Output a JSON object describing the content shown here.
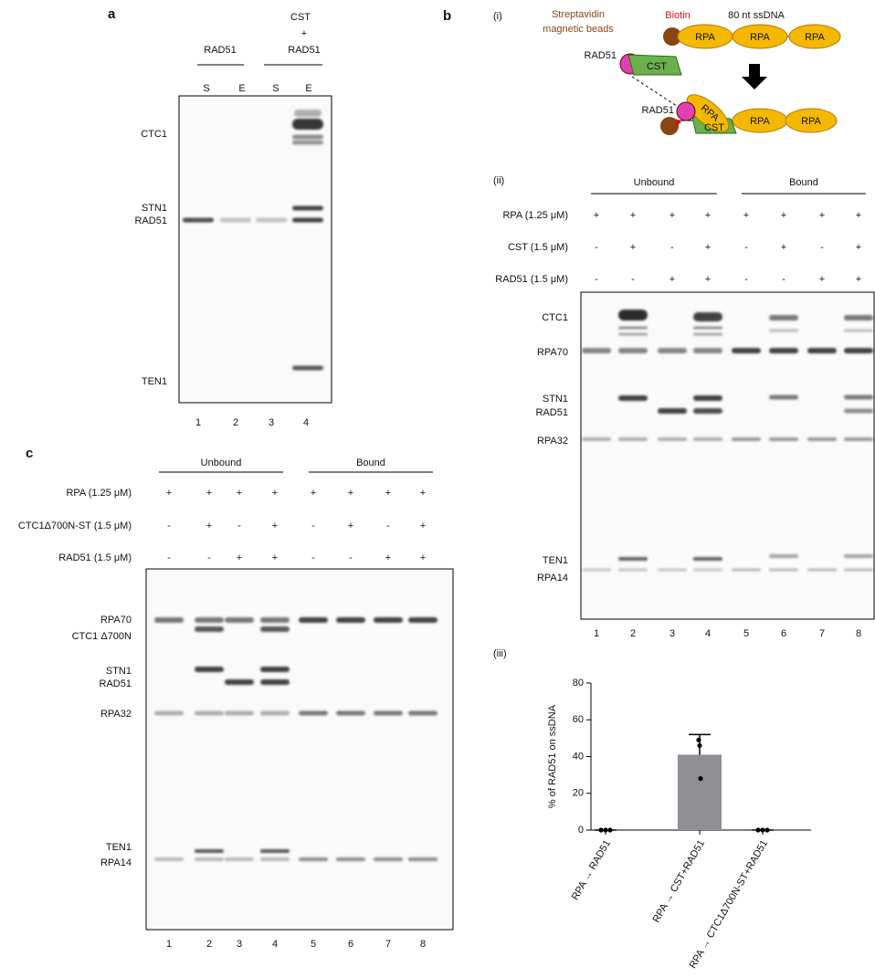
{
  "panel_a": {
    "label": "a",
    "header": [
      "CST",
      "+",
      "RAD51"
    ],
    "group": "RAD51",
    "lanes": [
      "S",
      "E",
      "S",
      "E"
    ],
    "bands": [
      "CTC1",
      "STN1",
      "RAD51",
      "TEN1"
    ],
    "lane_numbers": [
      1,
      2,
      3,
      4
    ]
  },
  "panel_b": {
    "label": "b",
    "i": {
      "label": "(i)",
      "beads": [
        "Streptavidin",
        "magnetic beads"
      ],
      "biotin": "Biotin",
      "dna": "80 nt ssDNA",
      "top_proteins": [
        "RPA",
        "RPA",
        "RPA",
        "RAD51",
        "CST"
      ],
      "bottom_proteins": [
        "RAD51",
        "RPA",
        "CST",
        "RPA",
        "RPA"
      ]
    },
    "ii": {
      "label": "(ii)",
      "groups": [
        "Unbound",
        "Bound"
      ],
      "rows": [
        {
          "name": "RPA (1.25 μM)",
          "signs": [
            "+",
            "+",
            "+",
            "+",
            "+",
            "+",
            "+",
            "+"
          ]
        },
        {
          "name": "CST (1.5 μM)",
          "signs": [
            "-",
            "+",
            "-",
            "+",
            "-",
            "+",
            "-",
            "+"
          ]
        },
        {
          "name": "RAD51 (1.5 μM)",
          "signs": [
            "-",
            "-",
            "+",
            "+",
            "-",
            "-",
            "+",
            "+"
          ]
        }
      ],
      "bands": [
        "CTC1",
        "RPA70",
        "STN1",
        "RAD51",
        "RPA32",
        "TEN1",
        "RPA14"
      ],
      "lane_numbers": [
        1,
        2,
        3,
        4,
        5,
        6,
        7,
        8
      ]
    },
    "iii": {
      "label": "(iii)"
    }
  },
  "panel_c": {
    "label": "c",
    "groups": [
      "Unbound",
      "Bound"
    ],
    "rows": [
      {
        "name": "RPA (1.25 μM)",
        "signs": [
          "+",
          "+",
          "+",
          "+",
          "+",
          "+",
          "+",
          "+"
        ]
      },
      {
        "name": "CTC1Δ700N-ST (1.5 μM)",
        "signs": [
          "-",
          "+",
          "-",
          "+",
          "-",
          "+",
          "-",
          "+"
        ]
      },
      {
        "name": "RAD51 (1.5 μM)",
        "signs": [
          "-",
          "-",
          "+",
          "+",
          "-",
          "-",
          "+",
          "+"
        ]
      }
    ],
    "bands": [
      "RPA70",
      "CTC1 Δ700N",
      "STN1",
      "RAD51",
      "RPA32",
      "TEN1",
      "RPA14"
    ],
    "lane_numbers": [
      1,
      2,
      3,
      4,
      5,
      6,
      7,
      8
    ]
  },
  "chart_data": {
    "type": "bar",
    "y_label": "% of RAD51 on ssDNA",
    "categories": [
      "RPA → RAD51",
      "RPA → CST+RAD51",
      "RPA → CTC1Δ700N-ST+RAD51"
    ],
    "values": [
      0,
      41,
      0
    ],
    "errors": [
      0,
      11,
      0
    ],
    "points": [
      [
        0,
        0,
        0
      ],
      [
        49,
        46,
        28
      ],
      [
        0,
        0,
        0
      ]
    ],
    "color": "#8e8e93",
    "ylim": [
      0,
      80
    ],
    "yticks": [
      0,
      20,
      40,
      60,
      80
    ]
  }
}
